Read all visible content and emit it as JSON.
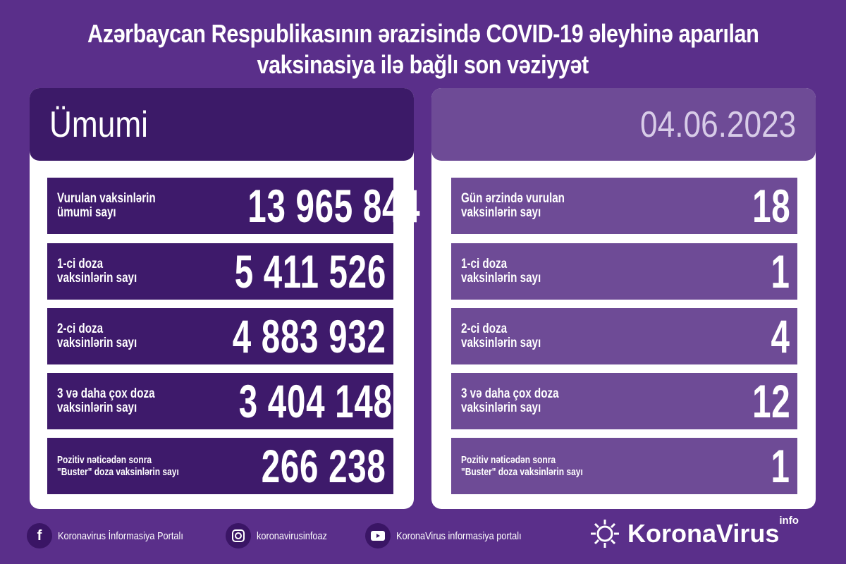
{
  "title": {
    "line1": "Azərbaycan Respublikasının ərazisində COVID-19 əleyhinə aparılan",
    "line2": "vaksinasiya ilə bağlı son vəziyyət"
  },
  "left": {
    "header": "Ümumi",
    "rows": [
      {
        "label1": "Vurulan vaksinlərin",
        "label2": "ümumi sayı",
        "value": "13 965 844"
      },
      {
        "label1": "1-ci doza",
        "label2": "vaksinlərin sayı",
        "value": "5 411 526"
      },
      {
        "label1": "2-ci doza",
        "label2": "vaksinlərin sayı",
        "value": "4 883 932"
      },
      {
        "label1": "3 və daha çox doza",
        "label2": "vaksinlərin sayı",
        "value": "3 404 148"
      },
      {
        "label1": "Pozitiv nəticədən sonra",
        "label2": "\"Buster\" doza vaksinlərin sayı",
        "value": "266 238"
      }
    ]
  },
  "right": {
    "header": "04.06.2023",
    "rows": [
      {
        "label1": "Gün ərzində vurulan",
        "label2": "vaksinlərin sayı",
        "value": "18"
      },
      {
        "label1": "1-ci doza",
        "label2": "vaksinlərin sayı",
        "value": "1"
      },
      {
        "label1": "2-ci doza",
        "label2": "vaksinlərin sayı",
        "value": "4"
      },
      {
        "label1": "3 və daha çox doza",
        "label2": "vaksinlərin sayı",
        "value": "12"
      },
      {
        "label1": "Pozitiv nəticədən sonra",
        "label2": "\"Buster\" doza vaksinlərin sayı",
        "value": "1"
      }
    ]
  },
  "footer": {
    "facebook": "Koronavirus İnformasiya Portalı",
    "instagram": "koronavirusinfoaz",
    "youtube": "KoronaVirus informasiya portalı",
    "brand": "KoronaVirus",
    "brand_sup": "info"
  },
  "colors": {
    "background": "#5a2f8a",
    "left_row": "#3e1a6b",
    "right_row": "#6e4b96"
  }
}
